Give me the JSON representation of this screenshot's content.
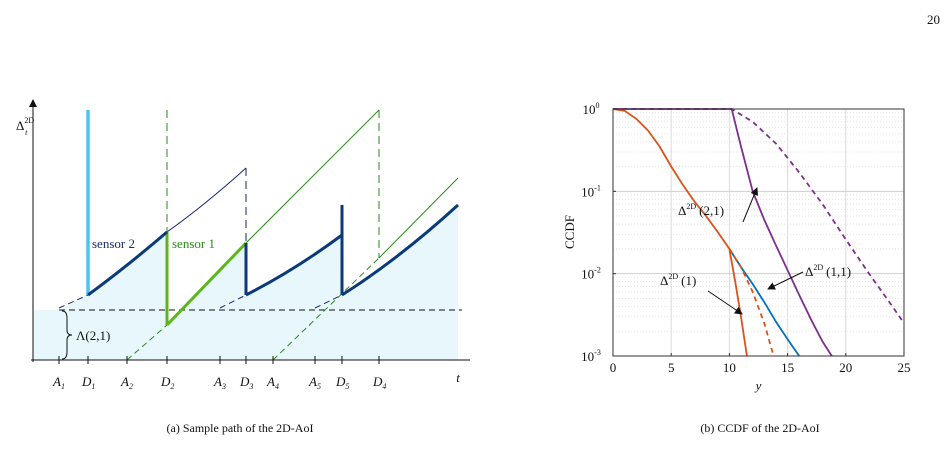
{
  "page_number": "20",
  "figure_a": {
    "caption": "(a) Sample path of the 2D-AoI",
    "y_label": {
      "base": "Δ",
      "sup": "2D",
      "sub": "t"
    },
    "x_label": "t",
    "x_ticks": [
      {
        "base": "A",
        "sub": "1"
      },
      {
        "base": "D",
        "sub": "1"
      },
      {
        "base": "A",
        "sub": "2"
      },
      {
        "base": "D",
        "sub": "2"
      },
      {
        "base": "A",
        "sub": "3"
      },
      {
        "base": "D",
        "sub": "3"
      },
      {
        "base": "A",
        "sub": "4"
      },
      {
        "base": "A",
        "sub": "5"
      },
      {
        "base": "D",
        "sub": "5"
      },
      {
        "base": "D",
        "sub": "4"
      }
    ],
    "labels": {
      "sensor2": "sensor 2",
      "sensor1": "sensor 1",
      "lambda": "Λ(2,1)"
    }
  },
  "chart_data": {
    "type": "line",
    "caption": "(b) CCDF of the 2D-AoI",
    "x_label": "y",
    "y_label": "CCDF",
    "ylog": true,
    "grid": true,
    "minor_grid": true,
    "xlim": [
      0,
      25
    ],
    "xticks": [
      0,
      5,
      10,
      15,
      20,
      25
    ],
    "ylim": [
      0.001,
      1
    ],
    "yticks": [
      {
        "value": 1,
        "label": "10",
        "exponent": "0"
      },
      {
        "value": 0.1,
        "label": "10",
        "exponent": "-1"
      },
      {
        "value": 0.01,
        "label": "10",
        "exponent": "-2"
      },
      {
        "value": 0.001,
        "label": "10",
        "exponent": "-3"
      }
    ],
    "series": [
      {
        "color": "#0072bd",
        "dashed": false,
        "x": [
          10,
          11,
          12,
          13,
          14,
          15,
          16
        ],
        "values": [
          0.02,
          0.012,
          0.0075,
          0.0045,
          0.0026,
          0.0016,
          0.001
        ]
      },
      {
        "color": "#d95319",
        "dashed": false,
        "x": [
          0,
          1,
          2,
          3,
          4,
          5,
          6,
          7,
          8,
          9,
          10,
          10.5,
          11,
          11.5
        ],
        "values": [
          1,
          0.95,
          0.76,
          0.55,
          0.35,
          0.2,
          0.12,
          0.075,
          0.05,
          0.032,
          0.02,
          0.008,
          0.003,
          0.001
        ]
      },
      {
        "color": "#d95319",
        "dashed": true,
        "x": [
          10,
          11,
          12,
          13,
          13.8
        ],
        "values": [
          0.02,
          0.012,
          0.006,
          0.0025,
          0.001
        ]
      },
      {
        "color": "#7e2f8e",
        "dashed": false,
        "x": [
          0,
          10.2,
          11,
          12,
          13,
          14,
          15,
          16,
          17,
          18,
          18.8
        ],
        "values": [
          1,
          1,
          0.35,
          0.1,
          0.045,
          0.022,
          0.011,
          0.0055,
          0.0028,
          0.0015,
          0.001
        ]
      },
      {
        "color": "#7e2f8e",
        "dashed": true,
        "x": [
          0,
          10.2,
          12,
          14,
          16,
          18,
          20,
          22,
          24,
          25
        ],
        "values": [
          1,
          1,
          0.7,
          0.38,
          0.17,
          0.07,
          0.026,
          0.01,
          0.004,
          0.0025
        ]
      }
    ],
    "annotations": [
      {
        "symbol": "Δ",
        "superscript": "2D",
        "argument": "(2,1)"
      },
      {
        "symbol": "Δ",
        "superscript": "2D",
        "argument": "(1,1)"
      },
      {
        "symbol": "Δ",
        "superscript": "2D",
        "argument": "(1)"
      }
    ]
  }
}
